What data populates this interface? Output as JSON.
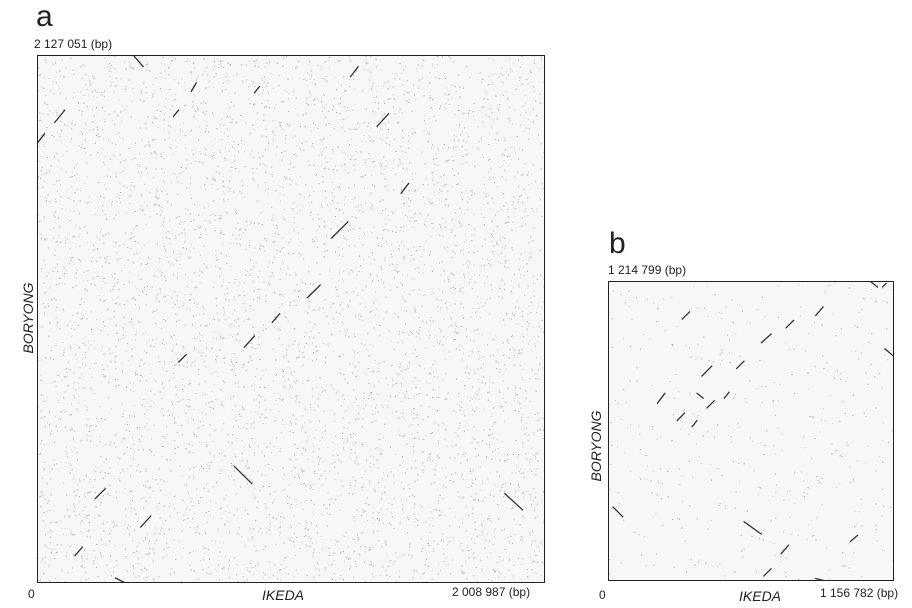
{
  "chart_data": [
    {
      "type": "scatter",
      "panel": "a",
      "xlabel": "IKEDA",
      "ylabel": "BORYONG",
      "x_origin_label": "0",
      "xmax_label": "2 008 987 (bp)",
      "ymax_label": "2 127 051 (bp)",
      "xlim": [
        0,
        2008987
      ],
      "ylim": [
        0,
        2127051
      ],
      "grid": false,
      "segments": [
        {
          "x1": 0,
          "y1": 1770000,
          "x2": 30000,
          "y2": 1810000
        },
        {
          "x1": 70000,
          "y1": 1855000,
          "x2": 110000,
          "y2": 1905000
        },
        {
          "x1": 380000,
          "y1": 2127000,
          "x2": 420000,
          "y2": 2080000
        },
        {
          "x1": 610000,
          "y1": 1980000,
          "x2": 630000,
          "y2": 2015000
        },
        {
          "x1": 540000,
          "y1": 1880000,
          "x2": 560000,
          "y2": 1905000
        },
        {
          "x1": 860000,
          "y1": 1975000,
          "x2": 880000,
          "y2": 2000000
        },
        {
          "x1": 1240000,
          "y1": 2040000,
          "x2": 1270000,
          "y2": 2080000
        },
        {
          "x1": 1345000,
          "y1": 1840000,
          "x2": 1390000,
          "y2": 1890000
        },
        {
          "x1": 1165000,
          "y1": 1390000,
          "x2": 1230000,
          "y2": 1455000
        },
        {
          "x1": 1440000,
          "y1": 1570000,
          "x2": 1470000,
          "y2": 1610000
        },
        {
          "x1": 1070000,
          "y1": 1150000,
          "x2": 1120000,
          "y2": 1200000
        },
        {
          "x1": 930000,
          "y1": 1050000,
          "x2": 960000,
          "y2": 1085000
        },
        {
          "x1": 820000,
          "y1": 950000,
          "x2": 860000,
          "y2": 995000
        },
        {
          "x1": 560000,
          "y1": 890000,
          "x2": 590000,
          "y2": 920000
        },
        {
          "x1": 780000,
          "y1": 470000,
          "x2": 850000,
          "y2": 400000
        },
        {
          "x1": 1850000,
          "y1": 360000,
          "x2": 1920000,
          "y2": 295000
        },
        {
          "x1": 230000,
          "y1": 340000,
          "x2": 270000,
          "y2": 380000
        },
        {
          "x1": 410000,
          "y1": 225000,
          "x2": 450000,
          "y2": 270000
        },
        {
          "x1": 150000,
          "y1": 110000,
          "x2": 180000,
          "y2": 145000
        },
        {
          "x1": 310000,
          "y1": 20000,
          "x2": 350000,
          "y2": 0
        }
      ]
    },
    {
      "type": "scatter",
      "panel": "b",
      "xlabel": "IKEDA",
      "ylabel": "BORYONG",
      "x_origin_label": "0",
      "xmax_label": "1 156 782 (bp)",
      "ymax_label": "1 214 799 (bp)",
      "xlim": [
        0,
        1156782
      ],
      "ylim": [
        0,
        1214799
      ],
      "grid": false,
      "segments": [
        {
          "x1": 1060000,
          "y1": 1214000,
          "x2": 1090000,
          "y2": 1190000
        },
        {
          "x1": 1110000,
          "y1": 1190000,
          "x2": 1125000,
          "y2": 1205000
        },
        {
          "x1": 1120000,
          "y1": 940000,
          "x2": 1156000,
          "y2": 910000
        },
        {
          "x1": 300000,
          "y1": 1060000,
          "x2": 330000,
          "y2": 1090000
        },
        {
          "x1": 620000,
          "y1": 965000,
          "x2": 660000,
          "y2": 1000000
        },
        {
          "x1": 720000,
          "y1": 1025000,
          "x2": 750000,
          "y2": 1055000
        },
        {
          "x1": 840000,
          "y1": 1075000,
          "x2": 870000,
          "y2": 1110000
        },
        {
          "x1": 520000,
          "y1": 860000,
          "x2": 550000,
          "y2": 890000
        },
        {
          "x1": 380000,
          "y1": 830000,
          "x2": 420000,
          "y2": 870000
        },
        {
          "x1": 400000,
          "y1": 700000,
          "x2": 430000,
          "y2": 730000
        },
        {
          "x1": 470000,
          "y1": 740000,
          "x2": 490000,
          "y2": 765000
        },
        {
          "x1": 280000,
          "y1": 650000,
          "x2": 310000,
          "y2": 680000
        },
        {
          "x1": 340000,
          "y1": 625000,
          "x2": 360000,
          "y2": 650000
        },
        {
          "x1": 200000,
          "y1": 720000,
          "x2": 230000,
          "y2": 760000
        },
        {
          "x1": 20000,
          "y1": 300000,
          "x2": 60000,
          "y2": 260000
        },
        {
          "x1": 550000,
          "y1": 240000,
          "x2": 620000,
          "y2": 190000
        },
        {
          "x1": 980000,
          "y1": 160000,
          "x2": 1010000,
          "y2": 185000
        },
        {
          "x1": 700000,
          "y1": 110000,
          "x2": 730000,
          "y2": 145000
        },
        {
          "x1": 630000,
          "y1": 20000,
          "x2": 660000,
          "y2": 50000
        },
        {
          "x1": 840000,
          "y1": 10000,
          "x2": 880000,
          "y2": 0
        },
        {
          "x1": 360000,
          "y1": 760000,
          "x2": 385000,
          "y2": 740000
        }
      ]
    }
  ]
}
